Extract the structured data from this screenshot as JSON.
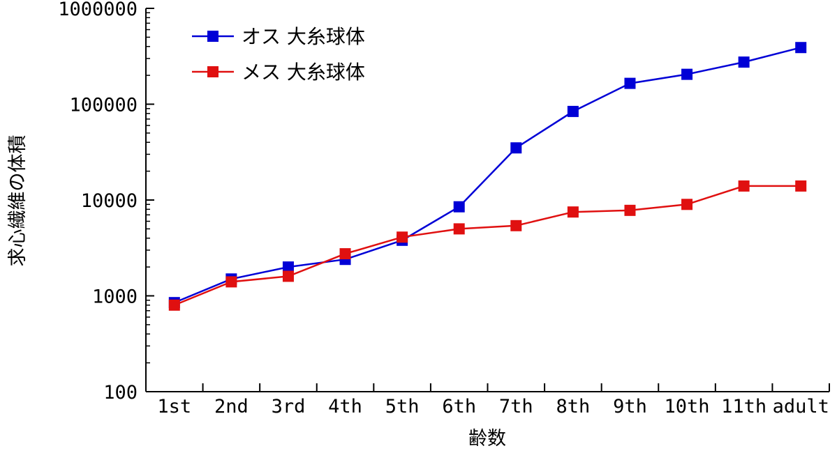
{
  "chart_data": {
    "type": "line",
    "title": "",
    "xlabel": "齢数",
    "ylabel": "求心繊維の体積",
    "yscale": "log",
    "ylim": [
      100,
      1000000
    ],
    "y_ticks": [
      "100",
      "1000",
      "10000",
      "100000",
      "1000000"
    ],
    "categories": [
      "1st",
      "2nd",
      "3rd",
      "4th",
      "5th",
      "6th",
      "7th",
      "8th",
      "9th",
      "10th",
      "11th",
      "adult"
    ],
    "legend_position": "top-left",
    "grid": false,
    "series": [
      {
        "name": "オス 大糸球体",
        "color": "#0000d6",
        "values": [
          850,
          1500,
          2000,
          2400,
          3800,
          8500,
          35000,
          84000,
          165000,
          205000,
          275000,
          390000
        ]
      },
      {
        "name": "メス 大糸球体",
        "color": "#e01010",
        "values": [
          800,
          1400,
          1600,
          2750,
          4100,
          5000,
          5400,
          7500,
          7800,
          9000,
          14000,
          14000
        ]
      }
    ]
  }
}
